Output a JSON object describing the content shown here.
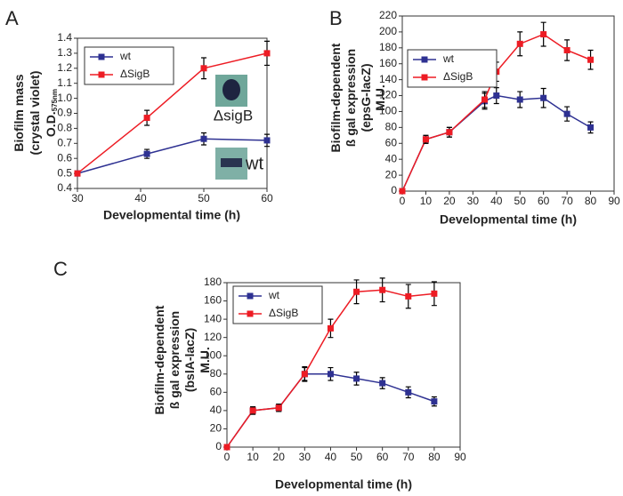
{
  "chart_data": [
    {
      "panel": "A",
      "type": "line",
      "xlabel": "Developmental time (h)",
      "ylabel": [
        "Biofilm mass",
        "(crystal violet)",
        "O.D."
      ],
      "ylabel_subscript": "575nm",
      "x": [
        30,
        41,
        50,
        60
      ],
      "xlim": [
        30,
        60
      ],
      "xticks": [
        30,
        40,
        50,
        60
      ],
      "ylim": [
        0.4,
        1.4
      ],
      "yticks": [
        0.4,
        0.5,
        0.6,
        0.7,
        0.8,
        0.9,
        {
          "value": 1,
          "label": "1.0"
        },
        1.1,
        1.2,
        1.3,
        1.4
      ],
      "series": [
        {
          "name": "wt",
          "color": "#2e3192",
          "values": [
            0.5,
            0.63,
            0.73,
            0.72
          ],
          "errors": [
            0.01,
            0.03,
            0.04,
            0.04
          ]
        },
        {
          "name": "ΔSigB",
          "color": "#ed1c24",
          "values": [
            0.5,
            0.87,
            1.2,
            1.3
          ],
          "errors": [
            0.01,
            0.05,
            0.07,
            0.08
          ]
        }
      ],
      "annotations": [
        "ΔsigB",
        "wt"
      ]
    },
    {
      "panel": "B",
      "type": "line",
      "xlabel": "Developmental time (h)",
      "ylabel": [
        "Biofilm-dependent",
        "ß gal expression",
        "(epsG-lacZ)",
        "M.U."
      ],
      "x": [
        0,
        10,
        20,
        35,
        40,
        50,
        60,
        70,
        80
      ],
      "xlim": [
        0,
        90
      ],
      "xticks": [
        0,
        10,
        20,
        30,
        40,
        50,
        60,
        70,
        80,
        90
      ],
      "ylim": [
        0,
        220
      ],
      "yticks": [
        0,
        20,
        40,
        60,
        80,
        100,
        120,
        140,
        160,
        180,
        200,
        220
      ],
      "series": [
        {
          "name": "wt",
          "color": "#2e3192",
          "values": [
            0,
            65,
            74,
            113,
            120,
            115,
            117,
            97,
            80
          ],
          "errors": [
            0,
            5,
            6,
            10,
            10,
            10,
            12,
            9,
            7
          ]
        },
        {
          "name": "ΔSigB",
          "color": "#ed1c24",
          "values": [
            0,
            65,
            74,
            115,
            150,
            185,
            197,
            177,
            165
          ],
          "errors": [
            0,
            5,
            6,
            10,
            12,
            15,
            15,
            13,
            12
          ]
        }
      ]
    },
    {
      "panel": "C",
      "type": "line",
      "xlabel": "Developmental time (h)",
      "ylabel": [
        "Biofilm-dependent",
        "ß gal expression",
        "(bslA-lacZ)",
        "M.U."
      ],
      "x": [
        0,
        10,
        20,
        30,
        40,
        50,
        60,
        70,
        80
      ],
      "xlim": [
        0,
        90
      ],
      "xticks": [
        0,
        10,
        20,
        30,
        40,
        50,
        60,
        70,
        80,
        90
      ],
      "ylim": [
        0,
        180
      ],
      "yticks": [
        0,
        20,
        40,
        60,
        80,
        100,
        120,
        140,
        160,
        180
      ],
      "series": [
        {
          "name": "wt",
          "color": "#2e3192",
          "values": [
            0,
            40,
            43,
            80,
            80,
            75,
            70,
            60,
            50
          ],
          "errors": [
            0,
            4,
            4,
            7,
            7,
            7,
            6,
            6,
            5
          ]
        },
        {
          "name": "ΔSigB",
          "color": "#ed1c24",
          "values": [
            0,
            40,
            43,
            80,
            130,
            170,
            172,
            165,
            168
          ],
          "errors": [
            0,
            4,
            4,
            8,
            10,
            13,
            13,
            13,
            13
          ]
        }
      ]
    }
  ]
}
